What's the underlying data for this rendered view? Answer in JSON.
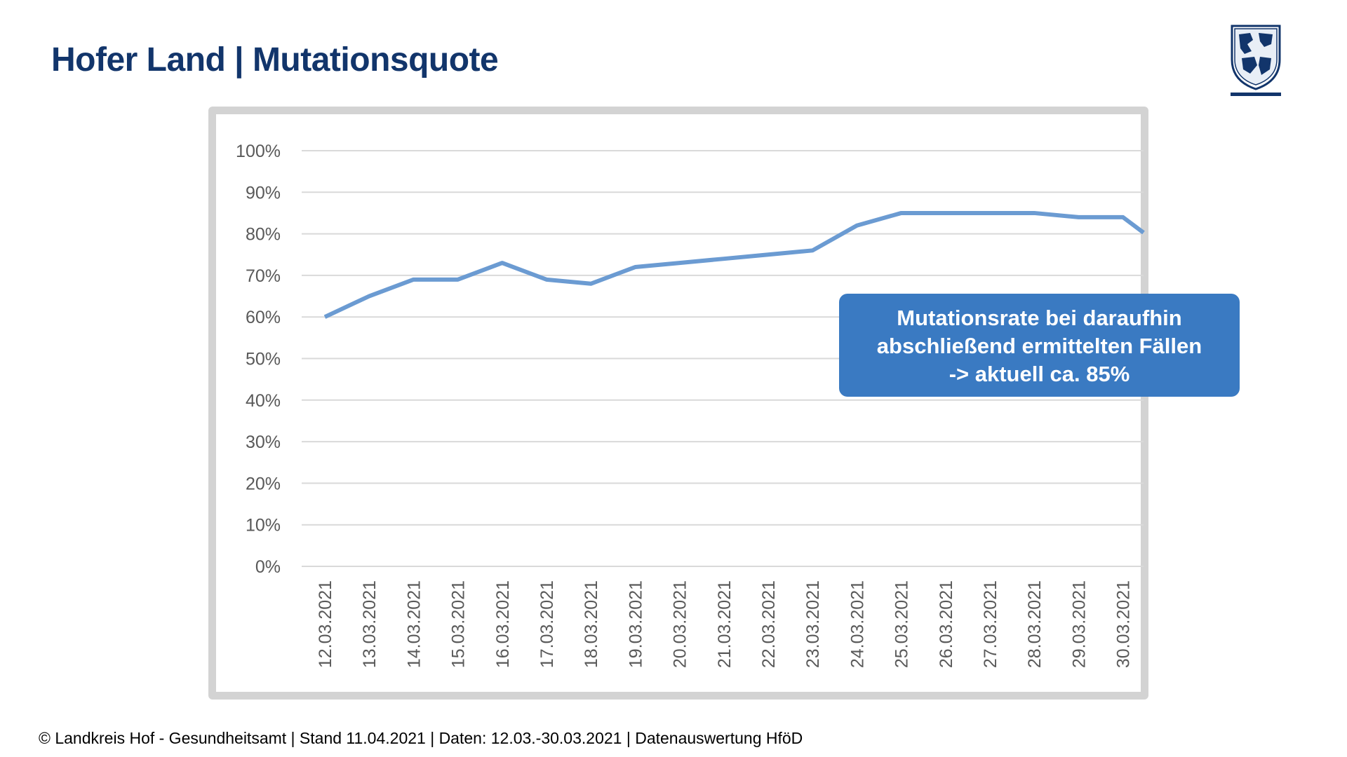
{
  "header": {
    "title": "Hofer Land | Mutationsquote"
  },
  "logo": {
    "icon": "coat-of-arms-icon",
    "colors": [
      "#12356b",
      "#ffffff"
    ]
  },
  "chart_data": {
    "type": "line",
    "title": "",
    "xlabel": "",
    "ylabel": "",
    "ylim": [
      0,
      1
    ],
    "y_ticks": [
      "0%",
      "10%",
      "20%",
      "30%",
      "40%",
      "50%",
      "60%",
      "70%",
      "80%",
      "90%",
      "100%"
    ],
    "categories": [
      "12.03.2021",
      "13.03.2021",
      "14.03.2021",
      "15.03.2021",
      "16.03.2021",
      "17.03.2021",
      "18.03.2021",
      "19.03.2021",
      "20.03.2021",
      "21.03.2021",
      "22.03.2021",
      "23.03.2021",
      "24.03.2021",
      "25.03.2021",
      "26.03.2021",
      "27.03.2021",
      "28.03.2021",
      "29.03.2021",
      "30.03.2021"
    ],
    "series": [
      {
        "color": "#6b9bd2",
        "values": [
          0.6,
          0.65,
          0.69,
          0.69,
          0.73,
          0.69,
          0.68,
          0.72,
          0.73,
          0.74,
          0.75,
          0.76,
          0.82,
          0.85,
          0.85,
          0.85,
          0.85,
          0.84,
          0.84
        ],
        "trailing_value": 0.76
      }
    ],
    "grid": true,
    "legend": "none"
  },
  "callout": {
    "lines": [
      "Mutationsrate bei daraufhin",
      "abschließend ermittelten Fällen",
      "-> aktuell ca. 85%"
    ],
    "color": "#3a7ac2"
  },
  "footer": {
    "text": "© Landkreis Hof - Gesundheitsamt | Stand 11.04.2021 | Daten: 12.03.-30.03.2021 | Datenauswertung HföD"
  }
}
